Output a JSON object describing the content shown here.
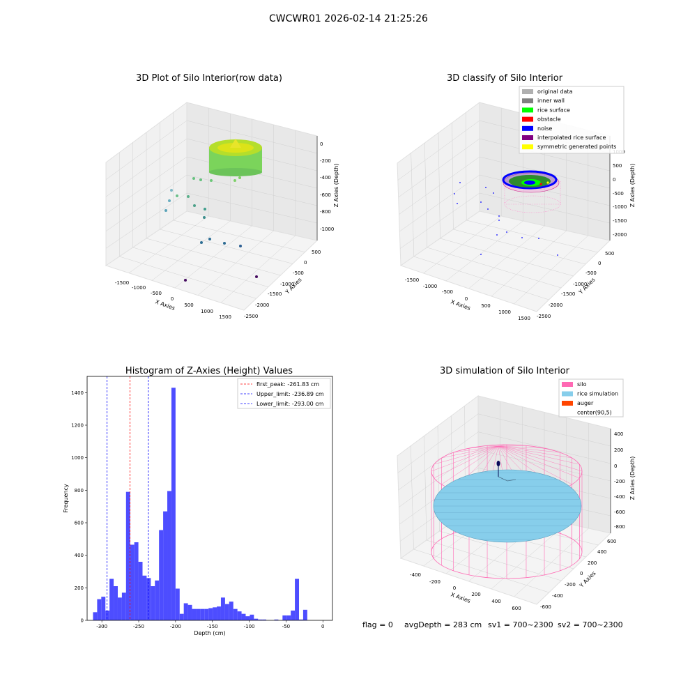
{
  "suptitle": "CWCWR01 2026-02-14 21:25:26",
  "footer": {
    "flag": "flag = 0",
    "avg": "avgDepth = 283 cm",
    "sv1": "sv1 = 700~2300",
    "sv2": "sv2 = 700~2300"
  },
  "chart_data": [
    {
      "type": "scatter",
      "projection": "3d",
      "title": "3D Plot of Silo Interior(row data)",
      "xlabel": "X Axies",
      "ylabel": "Y Axies",
      "zlabel": "Z Axies (Depth)",
      "xticks": [
        "-1500",
        "-1000",
        "-500",
        "0",
        "500",
        "1000",
        "1500"
      ],
      "yticks": [
        "500",
        "0",
        "-500",
        "-1000",
        "-1500",
        "-2000",
        "-2500"
      ],
      "zticks": [
        "0",
        "-200",
        "-400",
        "-600",
        "-800",
        "-1000"
      ],
      "colormap": "viridis"
    },
    {
      "type": "scatter",
      "projection": "3d",
      "title": "3D classify of Silo Interior",
      "xlabel": "X Axies",
      "ylabel": "Y Axies",
      "zlabel": "Z Axies (Depth)",
      "xticks": [
        "-1500",
        "-1000",
        "-500",
        "0",
        "500",
        "1000",
        "1500"
      ],
      "yticks": [
        "500",
        "0",
        "-500",
        "-1000",
        "-1500",
        "-2000",
        "-2500"
      ],
      "zticks": [
        "1000",
        "500",
        "0",
        "-500",
        "-1000",
        "-1500",
        "-2000"
      ],
      "legend_position": "top-right",
      "legend": [
        {
          "label": "original data",
          "color": "#b0b0b0"
        },
        {
          "label": "inner wall",
          "color": "#808080"
        },
        {
          "label": "rice surface",
          "color": "#00ff00"
        },
        {
          "label": "obstacle",
          "color": "#ff0000"
        },
        {
          "label": "noise",
          "color": "#0000ff"
        },
        {
          "label": "interpolated rice surface",
          "color": "#800080"
        },
        {
          "label": "symmetric generated points",
          "color": "#ffff00"
        }
      ]
    },
    {
      "type": "histogram",
      "title": "Histogram of Z-Axies (Height) Values",
      "xlabel": "Depth (cm)",
      "ylabel": "Frequency",
      "xlim": [
        -320,
        13
      ],
      "ylim": [
        0,
        1500
      ],
      "xticks": [
        -300,
        -250,
        -200,
        -150,
        -100,
        -50,
        0
      ],
      "yticks": [
        0,
        200,
        400,
        600,
        800,
        1000,
        1200,
        1400
      ],
      "bin_width": 5.6,
      "bar_color": "#4d4dff",
      "bins": [
        {
          "x": -312,
          "count": 50
        },
        {
          "x": -306.4,
          "count": 130
        },
        {
          "x": -300.8,
          "count": 145
        },
        {
          "x": -295.2,
          "count": 60
        },
        {
          "x": -289.6,
          "count": 255
        },
        {
          "x": -284,
          "count": 210
        },
        {
          "x": -278.4,
          "count": 140
        },
        {
          "x": -272.8,
          "count": 170
        },
        {
          "x": -267.2,
          "count": 790
        },
        {
          "x": -261.6,
          "count": 465
        },
        {
          "x": -256,
          "count": 480
        },
        {
          "x": -250.4,
          "count": 360
        },
        {
          "x": -244.8,
          "count": 275
        },
        {
          "x": -239.2,
          "count": 260
        },
        {
          "x": -233.6,
          "count": 210
        },
        {
          "x": -228,
          "count": 245
        },
        {
          "x": -222.4,
          "count": 555
        },
        {
          "x": -216.8,
          "count": 670
        },
        {
          "x": -211.2,
          "count": 795
        },
        {
          "x": -205.6,
          "count": 1430
        },
        {
          "x": -200,
          "count": 195
        },
        {
          "x": -194.4,
          "count": 40
        },
        {
          "x": -188.8,
          "count": 105
        },
        {
          "x": -183.2,
          "count": 95
        },
        {
          "x": -177.6,
          "count": 70
        },
        {
          "x": -172,
          "count": 70
        },
        {
          "x": -166.4,
          "count": 70
        },
        {
          "x": -160.8,
          "count": 70
        },
        {
          "x": -155.2,
          "count": 75
        },
        {
          "x": -149.6,
          "count": 80
        },
        {
          "x": -144,
          "count": 85
        },
        {
          "x": -138.4,
          "count": 140
        },
        {
          "x": -132.8,
          "count": 100
        },
        {
          "x": -127.2,
          "count": 115
        },
        {
          "x": -121.6,
          "count": 70
        },
        {
          "x": -116,
          "count": 55
        },
        {
          "x": -110.4,
          "count": 40
        },
        {
          "x": -104.8,
          "count": 25
        },
        {
          "x": -99.2,
          "count": 35
        },
        {
          "x": -93.6,
          "count": 10
        },
        {
          "x": -88,
          "count": 5
        },
        {
          "x": -82.4,
          "count": 5
        },
        {
          "x": -66,
          "count": 5
        },
        {
          "x": -54.8,
          "count": 30
        },
        {
          "x": -49.2,
          "count": 30
        },
        {
          "x": -43.6,
          "count": 60
        },
        {
          "x": -38,
          "count": 255
        },
        {
          "x": -32.4,
          "count": 5
        },
        {
          "x": -26.8,
          "count": 65
        }
      ],
      "vlines": [
        {
          "label": "first_peak: -261.83 cm",
          "x": -261.83,
          "color": "#ff0000"
        },
        {
          "label": "Upper_limit: -236.89 cm",
          "x": -236.89,
          "color": "#0000ff"
        },
        {
          "label": "Lower_limit: -293.00 cm",
          "x": -293.0,
          "color": "#0000ff"
        }
      ],
      "legend_position": "top-right"
    },
    {
      "type": "surface",
      "projection": "3d",
      "title": "3D simulation of Silo Interior",
      "xlabel": "X Axies",
      "ylabel": "Y Axies",
      "zlabel": "Z Axies (Depth)",
      "xticks": [
        "-400",
        "-200",
        "0",
        "200",
        "400",
        "600"
      ],
      "yticks": [
        "600",
        "400",
        "200",
        "0",
        "-200",
        "-400",
        "-600"
      ],
      "zticks": [
        "400",
        "200",
        "0",
        "-200",
        "-400",
        "-600",
        "-800"
      ],
      "legend_position": "top-right",
      "legend": [
        {
          "label": "silo",
          "color": "#ff69b4"
        },
        {
          "label": "rice simulation",
          "color": "#87ceeb"
        },
        {
          "label": "auger",
          "color": "#ff4500"
        },
        {
          "label": "center(90,5)",
          "color": ""
        }
      ]
    }
  ]
}
